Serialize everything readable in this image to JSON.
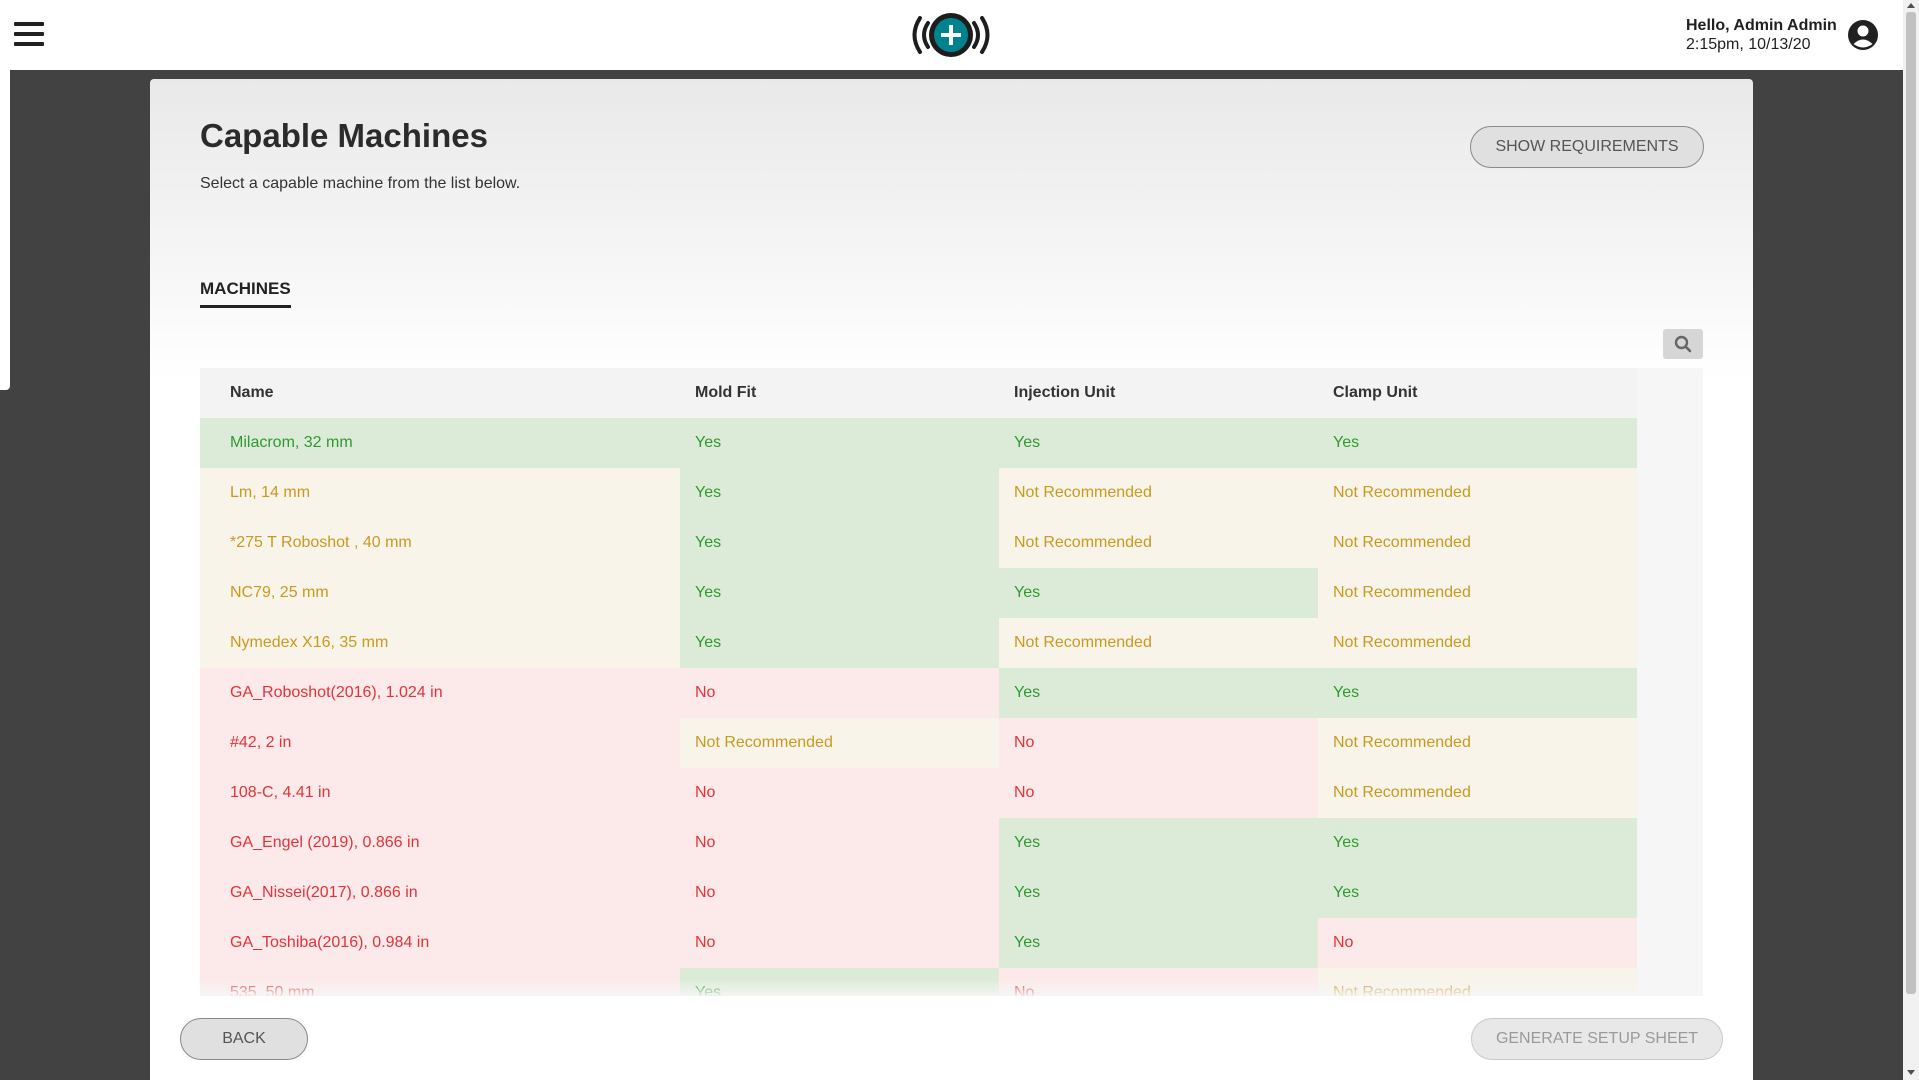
{
  "header": {
    "greeting": "Hello, Admin Admin",
    "datetime": "2:15pm, 10/13/20",
    "brand_color": "#00838f"
  },
  "page": {
    "title": "Capable Machines",
    "subtitle": "Select a capable machine from the list below.",
    "show_requirements_label": "SHOW REQUIREMENTS",
    "tab_label": "MACHINES",
    "back_label": "BACK",
    "generate_label": "GENERATE SETUP SHEET"
  },
  "colors": {
    "ok_text": "#2e9a2e",
    "ok_bg": "#dcebd8",
    "warn_text": "#c99a1e",
    "warn_bg": "#f8f4ea",
    "bad_text": "#e0343a",
    "bad_bg": "#fce9e9"
  },
  "table": {
    "columns": [
      "Name",
      "Mold Fit",
      "Injection Unit",
      "Clamp Unit"
    ],
    "rows": [
      {
        "name": "Milacrom, 32 mm",
        "mold": "Yes",
        "injection": "Yes",
        "clamp": "Yes",
        "status": "ok",
        "mold_status": "ok",
        "injection_status": "ok",
        "clamp_status": "ok"
      },
      {
        "name": "Lm, 14 mm",
        "mold": "Yes",
        "injection": "Not Recommended",
        "clamp": "Not Recommended",
        "status": "warn",
        "mold_status": "ok",
        "injection_status": "warn",
        "clamp_status": "warn"
      },
      {
        "name": "*275 T Roboshot , 40 mm",
        "mold": "Yes",
        "injection": "Not Recommended",
        "clamp": "Not Recommended",
        "status": "warn",
        "mold_status": "ok",
        "injection_status": "warn",
        "clamp_status": "warn"
      },
      {
        "name": "NC79, 25 mm",
        "mold": "Yes",
        "injection": "Yes",
        "clamp": "Not Recommended",
        "status": "warn",
        "mold_status": "ok",
        "injection_status": "ok",
        "clamp_status": "warn"
      },
      {
        "name": "Nymedex X16, 35 mm",
        "mold": "Yes",
        "injection": "Not Recommended",
        "clamp": "Not Recommended",
        "status": "warn",
        "mold_status": "ok",
        "injection_status": "warn",
        "clamp_status": "warn"
      },
      {
        "name": "GA_Roboshot(2016), 1.024 in",
        "mold": "No",
        "injection": "Yes",
        "clamp": "Yes",
        "status": "bad",
        "mold_status": "bad",
        "injection_status": "ok",
        "clamp_status": "ok"
      },
      {
        "name": "#42, 2 in",
        "mold": "Not Recommended",
        "injection": "No",
        "clamp": "Not Recommended",
        "status": "bad",
        "mold_status": "warn",
        "injection_status": "bad",
        "clamp_status": "warn"
      },
      {
        "name": "108-C, 4.41 in",
        "mold": "No",
        "injection": "No",
        "clamp": "Not Recommended",
        "status": "bad",
        "mold_status": "bad",
        "injection_status": "bad",
        "clamp_status": "warn"
      },
      {
        "name": "GA_Engel (2019), 0.866 in",
        "mold": "No",
        "injection": "Yes",
        "clamp": "Yes",
        "status": "bad",
        "mold_status": "bad",
        "injection_status": "ok",
        "clamp_status": "ok"
      },
      {
        "name": "GA_Nissei(2017), 0.866 in",
        "mold": "No",
        "injection": "Yes",
        "clamp": "Yes",
        "status": "bad",
        "mold_status": "bad",
        "injection_status": "ok",
        "clamp_status": "ok"
      },
      {
        "name": "GA_Toshiba(2016), 0.984 in",
        "mold": "No",
        "injection": "Yes",
        "clamp": "No",
        "status": "bad",
        "mold_status": "bad",
        "injection_status": "ok",
        "clamp_status": "bad"
      },
      {
        "name": "535, 50 mm",
        "mold": "Yes",
        "injection": "No",
        "clamp": "Not Recommended",
        "status": "bad",
        "mold_status": "ok",
        "injection_status": "bad",
        "clamp_status": "warn"
      }
    ]
  }
}
